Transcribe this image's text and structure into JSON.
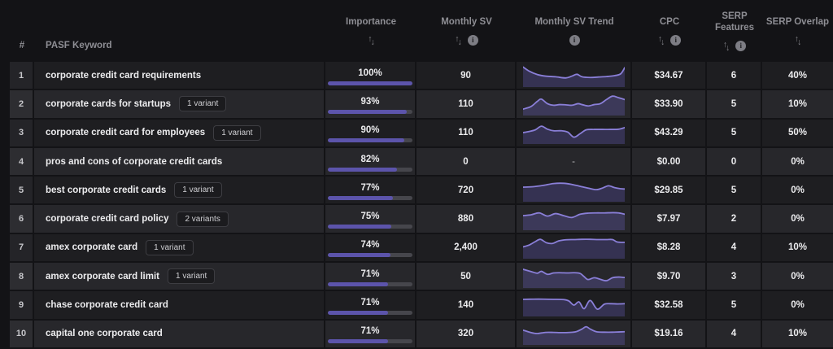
{
  "colors": {
    "page_background": "#131316",
    "accent_purple": "#5c54ab",
    "sparkline_line": "#8a7fd8",
    "sparkline_fill": "rgba(108,99,197,0.30)",
    "bar_track": "#46464c"
  },
  "labels": {
    "no_trend_placeholder": "-"
  },
  "header": {
    "columns": [
      {
        "key": "rank",
        "label": "#",
        "sort": false,
        "info": false,
        "bottom": true,
        "left": false
      },
      {
        "key": "keyword",
        "label": "PASF Keyword",
        "sort": false,
        "info": false,
        "bottom": true,
        "left": true
      },
      {
        "key": "importance",
        "label": "Importance",
        "sort": true,
        "info": false,
        "bottom": false,
        "left": false
      },
      {
        "key": "sv",
        "label": "Monthly SV",
        "sort": true,
        "info": true,
        "bottom": false,
        "left": false
      },
      {
        "key": "trend",
        "label": "Monthly SV Trend",
        "sort": false,
        "info": true,
        "bottom": false,
        "left": false
      },
      {
        "key": "cpc",
        "label": "CPC",
        "sort": true,
        "info": true,
        "bottom": false,
        "left": false
      },
      {
        "key": "features",
        "label": "SERP Features",
        "sort": true,
        "info": true,
        "bottom": false,
        "left": false
      },
      {
        "key": "overlap",
        "label": "SERP Overlap",
        "sort": true,
        "info": false,
        "bottom": false,
        "left": false
      }
    ]
  },
  "rows": [
    {
      "rank": "1",
      "keyword": "corporate credit card requirements",
      "badge": null,
      "importance": "100%",
      "importance_pct": 100,
      "sv": "90",
      "cpc": "$34.67",
      "features": "6",
      "overlap": "40%",
      "trend": [
        [
          0,
          12
        ],
        [
          6,
          30
        ],
        [
          14,
          45
        ],
        [
          22,
          52
        ],
        [
          32,
          55
        ],
        [
          42,
          60
        ],
        [
          48,
          52
        ],
        [
          53,
          44
        ],
        [
          58,
          55
        ],
        [
          66,
          58
        ],
        [
          74,
          56
        ],
        [
          82,
          54
        ],
        [
          90,
          50
        ],
        [
          96,
          42
        ],
        [
          100,
          15
        ]
      ]
    },
    {
      "rank": "2",
      "keyword": "corporate cards for startups",
      "badge": "1 variant",
      "importance": "93%",
      "importance_pct": 93,
      "sv": "110",
      "cpc": "$33.90",
      "features": "5",
      "overlap": "10%",
      "trend": [
        [
          0,
          72
        ],
        [
          8,
          60
        ],
        [
          14,
          38
        ],
        [
          18,
          28
        ],
        [
          24,
          48
        ],
        [
          30,
          55
        ],
        [
          36,
          52
        ],
        [
          42,
          53
        ],
        [
          48,
          55
        ],
        [
          54,
          48
        ],
        [
          58,
          52
        ],
        [
          64,
          58
        ],
        [
          70,
          52
        ],
        [
          76,
          48
        ],
        [
          82,
          30
        ],
        [
          88,
          15
        ],
        [
          94,
          22
        ],
        [
          100,
          30
        ]
      ]
    },
    {
      "rank": "3",
      "keyword": "corporate credit card for employees",
      "badge": "1 variant",
      "importance": "90%",
      "importance_pct": 90,
      "sv": "110",
      "cpc": "$43.29",
      "features": "5",
      "overlap": "50%",
      "trend": [
        [
          0,
          50
        ],
        [
          6,
          45
        ],
        [
          12,
          38
        ],
        [
          18,
          22
        ],
        [
          24,
          35
        ],
        [
          30,
          42
        ],
        [
          38,
          42
        ],
        [
          44,
          48
        ],
        [
          50,
          70
        ],
        [
          56,
          55
        ],
        [
          62,
          38
        ],
        [
          70,
          36
        ],
        [
          78,
          36
        ],
        [
          86,
          36
        ],
        [
          94,
          35
        ],
        [
          100,
          28
        ]
      ]
    },
    {
      "rank": "4",
      "keyword": "pros and cons of corporate credit cards",
      "badge": null,
      "importance": "82%",
      "importance_pct": 82,
      "sv": "0",
      "cpc": "$0.00",
      "features": "0",
      "overlap": "0%",
      "trend": null
    },
    {
      "rank": "5",
      "keyword": "best corporate credit cards",
      "badge": "1 variant",
      "importance": "77%",
      "importance_pct": 77,
      "sv": "720",
      "cpc": "$29.85",
      "features": "5",
      "overlap": "0%",
      "trend": [
        [
          0,
          36
        ],
        [
          10,
          34
        ],
        [
          20,
          28
        ],
        [
          30,
          20
        ],
        [
          40,
          19
        ],
        [
          48,
          24
        ],
        [
          56,
          32
        ],
        [
          64,
          40
        ],
        [
          72,
          47
        ],
        [
          78,
          40
        ],
        [
          84,
          30
        ],
        [
          90,
          38
        ],
        [
          96,
          43
        ],
        [
          100,
          44
        ]
      ]
    },
    {
      "rank": "6",
      "keyword": "corporate credit card policy",
      "badge": "2 variants",
      "importance": "75%",
      "importance_pct": 75,
      "sv": "880",
      "cpc": "$7.97",
      "features": "2",
      "overlap": "0%",
      "trend": [
        [
          0,
          36
        ],
        [
          8,
          32
        ],
        [
          16,
          24
        ],
        [
          24,
          38
        ],
        [
          32,
          27
        ],
        [
          40,
          36
        ],
        [
          48,
          44
        ],
        [
          56,
          30
        ],
        [
          64,
          25
        ],
        [
          72,
          24
        ],
        [
          80,
          24
        ],
        [
          88,
          23
        ],
        [
          94,
          24
        ],
        [
          100,
          30
        ]
      ]
    },
    {
      "rank": "7",
      "keyword": "amex corporate card",
      "badge": "1 variant",
      "importance": "74%",
      "importance_pct": 74,
      "sv": "2,400",
      "cpc": "$8.28",
      "features": "4",
      "overlap": "10%",
      "trend": [
        [
          0,
          48
        ],
        [
          6,
          40
        ],
        [
          12,
          25
        ],
        [
          17,
          15
        ],
        [
          23,
          30
        ],
        [
          29,
          33
        ],
        [
          35,
          22
        ],
        [
          42,
          17
        ],
        [
          50,
          16
        ],
        [
          58,
          15
        ],
        [
          66,
          15
        ],
        [
          74,
          16
        ],
        [
          82,
          16
        ],
        [
          88,
          16
        ],
        [
          92,
          26
        ],
        [
          96,
          28
        ],
        [
          100,
          28
        ]
      ]
    },
    {
      "rank": "8",
      "keyword": "amex corporate card limit",
      "badge": "1 variant",
      "importance": "71%",
      "importance_pct": 71,
      "sv": "50",
      "cpc": "$9.70",
      "features": "3",
      "overlap": "0%",
      "trend": [
        [
          0,
          18
        ],
        [
          8,
          28
        ],
        [
          14,
          35
        ],
        [
          18,
          27
        ],
        [
          24,
          40
        ],
        [
          30,
          34
        ],
        [
          36,
          33
        ],
        [
          44,
          34
        ],
        [
          50,
          33
        ],
        [
          56,
          36
        ],
        [
          60,
          50
        ],
        [
          64,
          63
        ],
        [
          70,
          55
        ],
        [
          76,
          62
        ],
        [
          82,
          68
        ],
        [
          88,
          55
        ],
        [
          94,
          52
        ],
        [
          100,
          54
        ]
      ]
    },
    {
      "rank": "9",
      "keyword": "chase corporate credit card",
      "badge": null,
      "importance": "71%",
      "importance_pct": 71,
      "sv": "140",
      "cpc": "$32.58",
      "features": "5",
      "overlap": "0%",
      "trend": [
        [
          0,
          25
        ],
        [
          10,
          24
        ],
        [
          20,
          24
        ],
        [
          30,
          25
        ],
        [
          40,
          26
        ],
        [
          45,
          32
        ],
        [
          50,
          50
        ],
        [
          55,
          36
        ],
        [
          60,
          66
        ],
        [
          66,
          30
        ],
        [
          73,
          68
        ],
        [
          80,
          46
        ],
        [
          86,
          44
        ],
        [
          93,
          45
        ],
        [
          100,
          44
        ]
      ]
    },
    {
      "rank": "10",
      "keyword": "capital one corporate card",
      "badge": null,
      "importance": "71%",
      "importance_pct": 71,
      "sv": "320",
      "cpc": "$19.16",
      "features": "4",
      "overlap": "10%",
      "trend": [
        [
          0,
          35
        ],
        [
          8,
          46
        ],
        [
          14,
          50
        ],
        [
          22,
          45
        ],
        [
          30,
          45
        ],
        [
          38,
          46
        ],
        [
          46,
          45
        ],
        [
          52,
          42
        ],
        [
          58,
          30
        ],
        [
          62,
          20
        ],
        [
          66,
          30
        ],
        [
          72,
          42
        ],
        [
          80,
          44
        ],
        [
          88,
          44
        ],
        [
          94,
          43
        ],
        [
          100,
          42
        ]
      ]
    }
  ]
}
